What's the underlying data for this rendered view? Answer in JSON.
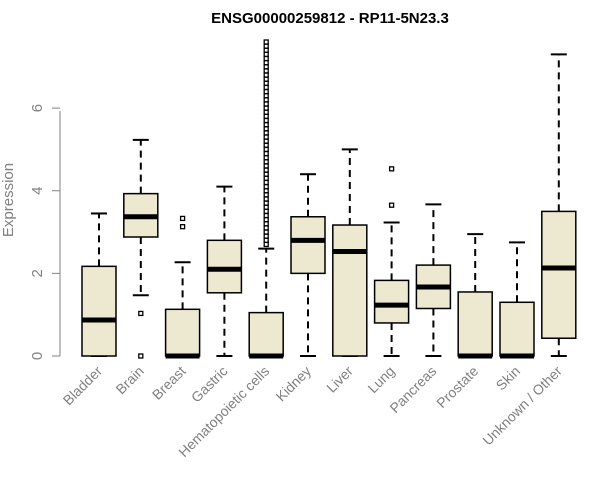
{
  "chart_data": {
    "type": "boxplot",
    "title": "ENSG00000259812 - RP11-5N23.3",
    "xlabel": "",
    "ylabel": "Expression",
    "ylim": [
      0,
      7.6
    ],
    "yticks": [
      0,
      2,
      4,
      6
    ],
    "box_fill": "#ede8d0",
    "axis_color": "#808080",
    "categories": [
      "Bladder",
      "Brain",
      "Breast",
      "Gastric",
      "Hematopoietic cells",
      "Kidney",
      "Liver",
      "Lung",
      "Pancreas",
      "Prostate",
      "Skin",
      "Unknown / Other"
    ],
    "boxes": [
      {
        "name": "Bladder",
        "whisker_low": 0,
        "q1": 0,
        "median": 0.87,
        "q3": 2.17,
        "whisker_high": 3.45,
        "outliers": []
      },
      {
        "name": "Brain",
        "whisker_low": 1.47,
        "q1": 2.88,
        "median": 3.37,
        "q3": 3.93,
        "whisker_high": 5.23,
        "outliers": [
          0,
          1.03
        ]
      },
      {
        "name": "Breast",
        "whisker_low": 0,
        "q1": 0,
        "median": 0,
        "q3": 1.13,
        "whisker_high": 2.27,
        "outliers": [
          3.13,
          3.33
        ]
      },
      {
        "name": "Gastric",
        "whisker_low": 0,
        "q1": 1.53,
        "median": 2.1,
        "q3": 2.8,
        "whisker_high": 4.1,
        "outliers": []
      },
      {
        "name": "Hematopoietic cells",
        "whisker_low": 0,
        "q1": 0,
        "median": 0,
        "q3": 1.05,
        "whisker_high": 2.6,
        "outliers": [
          2.7,
          2.8,
          2.9,
          3.0,
          3.1,
          3.2,
          3.3,
          3.4,
          3.5,
          3.6,
          3.7,
          3.8,
          3.9,
          4.0,
          4.1,
          4.2,
          4.3,
          4.4,
          4.5,
          4.6,
          4.7,
          4.8,
          4.9,
          5.0,
          5.1,
          5.2,
          5.3,
          5.4,
          5.5,
          5.6,
          5.7,
          5.8,
          5.9,
          6.0,
          6.1,
          6.2,
          6.3,
          6.4,
          6.5,
          6.6,
          6.7,
          6.8,
          6.9,
          7.0,
          7.1,
          7.2,
          7.3,
          7.4,
          7.5,
          7.6
        ]
      },
      {
        "name": "Kidney",
        "whisker_low": 0,
        "q1": 2.0,
        "median": 2.8,
        "q3": 3.37,
        "whisker_high": 4.4,
        "outliers": []
      },
      {
        "name": "Liver",
        "whisker_low": 0,
        "q1": 0,
        "median": 2.53,
        "q3": 3.17,
        "whisker_high": 5.0,
        "outliers": []
      },
      {
        "name": "Lung",
        "whisker_low": 0,
        "q1": 0.8,
        "median": 1.23,
        "q3": 1.83,
        "whisker_high": 3.23,
        "outliers": [
          3.65,
          4.53
        ]
      },
      {
        "name": "Pancreas",
        "whisker_low": 0,
        "q1": 1.15,
        "median": 1.67,
        "q3": 2.2,
        "whisker_high": 3.67,
        "outliers": []
      },
      {
        "name": "Prostate",
        "whisker_low": 0,
        "q1": 0,
        "median": 0,
        "q3": 1.55,
        "whisker_high": 2.95,
        "outliers": []
      },
      {
        "name": "Skin",
        "whisker_low": 0,
        "q1": 0,
        "median": 0,
        "q3": 1.3,
        "whisker_high": 2.75,
        "outliers": []
      },
      {
        "name": "Unknown / Other",
        "whisker_low": 0,
        "q1": 0.43,
        "median": 2.13,
        "q3": 3.5,
        "whisker_high": 7.3,
        "outliers": []
      }
    ]
  }
}
